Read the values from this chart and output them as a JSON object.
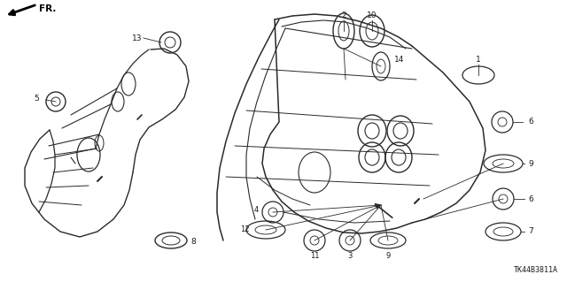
{
  "part_number": "TK44B3811A",
  "fr_arrow_text": "FR.",
  "bg_color": "#ffffff",
  "line_color": "#2a2a2a",
  "text_color": "#1a1a1a",
  "fig_width": 6.4,
  "fig_height": 3.19,
  "dpi": 100
}
